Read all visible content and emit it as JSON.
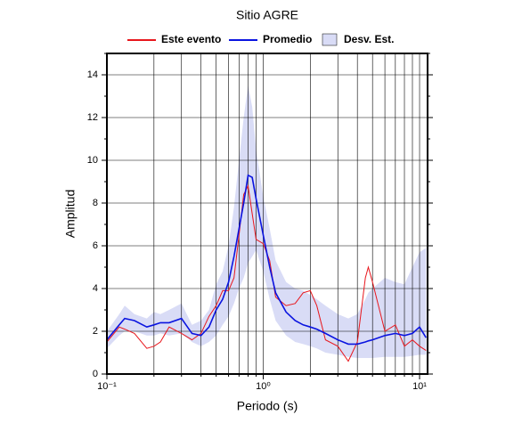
{
  "chart_data": {
    "type": "line",
    "title": "Sitio AGRE",
    "xlabel": "Periodo (s)",
    "ylabel": "Amplitud",
    "xscale": "log",
    "grid": true,
    "xlim": [
      0.1,
      11.25
    ],
    "xticks": [
      {
        "value": 0.1,
        "label": "10⁻¹"
      },
      {
        "value": 1,
        "label": "10⁰"
      },
      {
        "value": 10,
        "label": "10¹"
      }
    ],
    "xminor": [
      0.2,
      0.3,
      0.4,
      0.5,
      0.6,
      0.7,
      0.8,
      0.9,
      2,
      3,
      4,
      5,
      6,
      7,
      8,
      9
    ],
    "ylim": [
      0,
      15
    ],
    "yticks": [
      0,
      2,
      4,
      6,
      8,
      10,
      12,
      14
    ],
    "yminor": [
      1,
      3,
      5,
      7,
      9,
      11,
      13,
      15
    ],
    "x": [
      0.1,
      0.12,
      0.13,
      0.15,
      0.18,
      0.2,
      0.22,
      0.25,
      0.3,
      0.35,
      0.4,
      0.45,
      0.5,
      0.55,
      0.6,
      0.65,
      0.7,
      0.75,
      0.8,
      0.85,
      0.9,
      1.0,
      1.1,
      1.2,
      1.4,
      1.6,
      1.8,
      2,
      2.2,
      2.5,
      3,
      3.5,
      4,
      4.5,
      4.7,
      5,
      6,
      7,
      8,
      9,
      10,
      11
    ],
    "series": [
      {
        "name": "Este evento",
        "color": "#e8161c",
        "values": [
          1.5,
          2.2,
          2.1,
          1.9,
          1.2,
          1.3,
          1.5,
          2.2,
          1.9,
          1.6,
          1.9,
          2.7,
          3.2,
          3.9,
          3.9,
          4.5,
          6.5,
          8.4,
          8.8,
          7.5,
          6.3,
          6.1,
          5.3,
          3.6,
          3.2,
          3.3,
          3.8,
          3.9,
          3.2,
          1.6,
          1.3,
          0.6,
          1.5,
          4.5,
          5.0,
          4.3,
          2.0,
          2.3,
          1.3,
          1.6,
          1.3,
          1.1
        ]
      },
      {
        "name": "Promedio",
        "color": "#0a14e0",
        "values": [
          1.6,
          2.3,
          2.6,
          2.5,
          2.2,
          2.3,
          2.4,
          2.4,
          2.6,
          1.9,
          1.8,
          2.2,
          3.0,
          3.5,
          4.3,
          5.5,
          6.8,
          8.0,
          9.3,
          9.2,
          8.2,
          6.5,
          5.0,
          3.8,
          2.9,
          2.5,
          2.3,
          2.2,
          2.1,
          1.9,
          1.6,
          1.4,
          1.4,
          1.5,
          1.55,
          1.6,
          1.8,
          1.9,
          1.8,
          1.9,
          2.2,
          1.7
        ]
      },
      {
        "name": "Desv. Est.",
        "color": "#d9dcf6",
        "upper": [
          2.0,
          2.8,
          3.2,
          2.8,
          2.6,
          2.9,
          2.8,
          3.0,
          3.3,
          2.3,
          2.5,
          3.0,
          4.2,
          4.8,
          6.0,
          7.8,
          10,
          12,
          13.5,
          12.5,
          10.5,
          8.3,
          6.8,
          5.3,
          4.3,
          4.0,
          3.9,
          3.7,
          3.5,
          3.2,
          2.8,
          2.6,
          2.8,
          3.5,
          3.8,
          4.0,
          4.5,
          4.3,
          4.2,
          5.0,
          5.7,
          5.9
        ],
        "lower": [
          1.2,
          1.8,
          2.0,
          2.0,
          1.8,
          1.8,
          1.9,
          1.8,
          1.9,
          1.5,
          1.3,
          1.5,
          1.8,
          2.3,
          2.7,
          3.3,
          4.0,
          4.5,
          5.2,
          5.5,
          5.8,
          4.8,
          3.5,
          2.5,
          1.8,
          1.5,
          1.4,
          1.3,
          1.2,
          1.0,
          0.9,
          0.8,
          0.75,
          0.75,
          0.75,
          0.75,
          0.8,
          0.8,
          0.8,
          0.85,
          0.9,
          0.9
        ]
      }
    ]
  }
}
